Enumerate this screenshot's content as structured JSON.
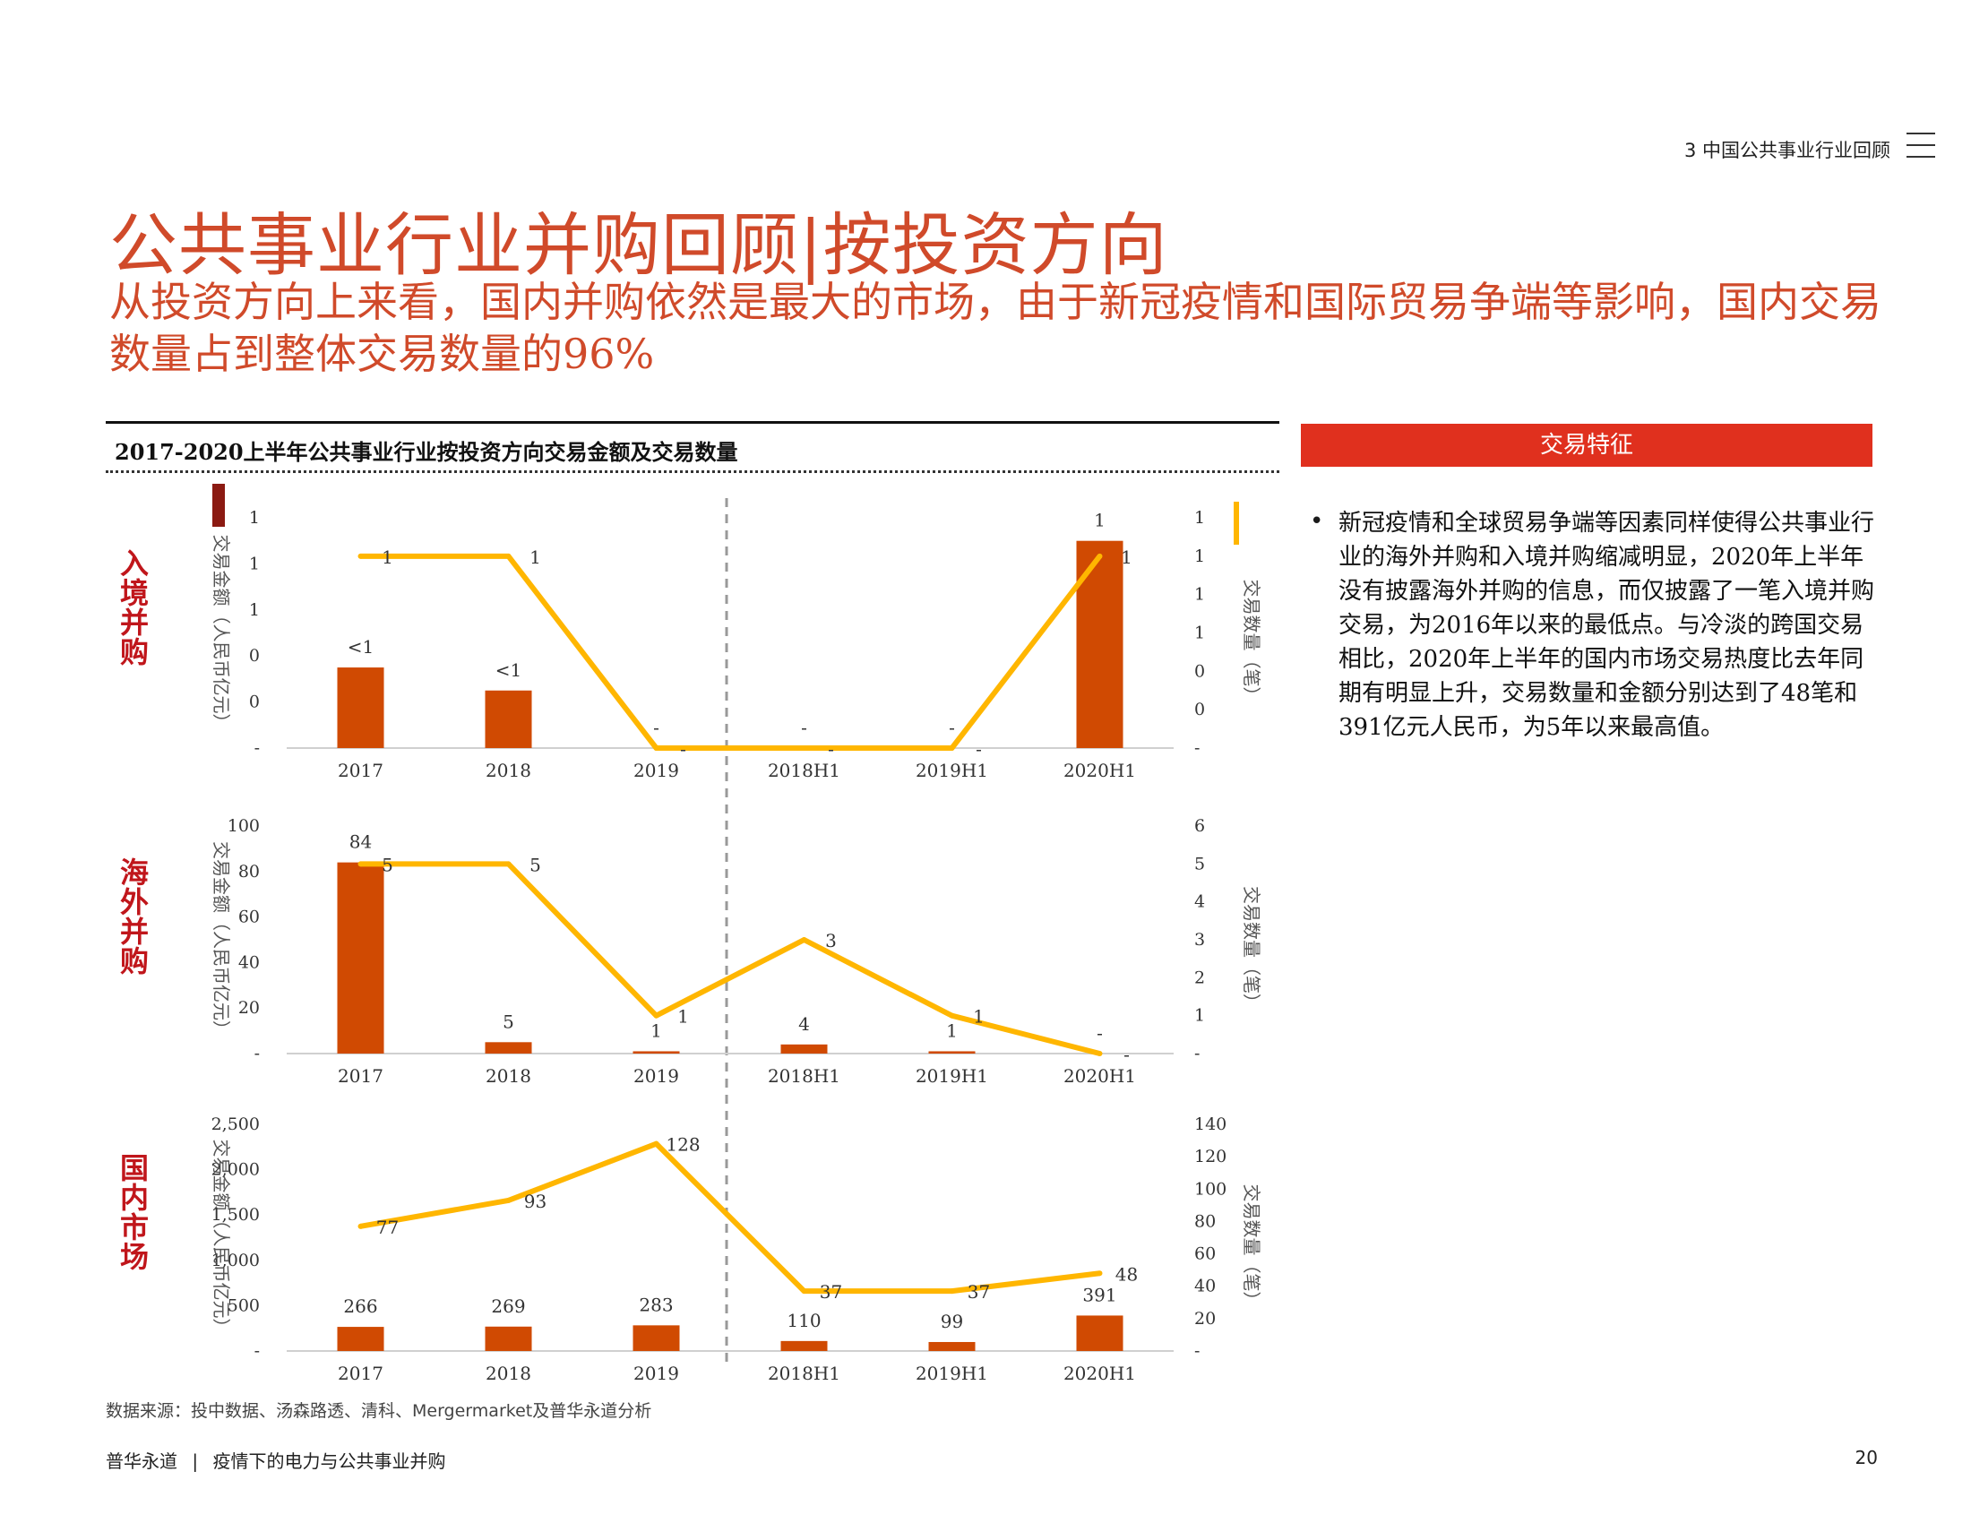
{
  "header": {
    "section": "3 中国公共事业行业回顾",
    "title": "公共事业行业并购回顾|按投资方向",
    "subtitle": "从投资方向上来看，国内并购依然是最大的市场，由于新冠疫情和国际贸易争端等影响，国内交易数量占到整体交易数量的96%"
  },
  "chart_title": "2017-2020上半年公共事业行业按投资方向交易金额及交易数量",
  "panel": {
    "title": "交易特征",
    "bullet": "新冠疫情和全球贸易争端等因素同样使得公共事业行业的海外并购和入境并购缩减明显，2020年上半年没有披露海外并购的信息，而仅披露了一笔入境并购交易，为2016年以来的最低点。与冷淡的跨国交易相比，2020年上半年的国内市场交易热度比去年同期有明显上升，交易数量和金额分别达到了48笔和391亿元人民币，为5年以来最高值。"
  },
  "source": "数据来源：投中数据、汤森路透、清科、Mergermarket及普华永道分析",
  "footer": {
    "brand": "普华永道",
    "separator": "|",
    "report": "疫情下的电力与公共事业并购",
    "page": "20"
  },
  "colors": {
    "bar": "#d04a02",
    "line": "#ffb600",
    "accent": "#e0301e",
    "label": "#c0161b",
    "legend_bar": "#8b1a12"
  },
  "chart_data": [
    {
      "type": "bar+line",
      "row_label": "入境并购",
      "categories": [
        "2017",
        "2018",
        "2019",
        "2018H1",
        "2019H1",
        "2020H1"
      ],
      "ylabel": "交易金额（人民币亿元）",
      "y2label": "交易数量（笔）",
      "y_ticks": [
        "-",
        "0",
        "0",
        "1",
        "1",
        "1"
      ],
      "y2_ticks": [
        "-",
        "0",
        "0",
        "1",
        "1",
        "1",
        "1"
      ],
      "bar_values": [
        0.35,
        0.25,
        0,
        0,
        0,
        0.9
      ],
      "bar_labels": [
        "<1",
        "<1",
        "-",
        "-",
        "-",
        "1"
      ],
      "line_values": [
        1,
        1,
        0,
        0,
        0,
        1
      ],
      "line_labels": [
        "1",
        "1",
        "-",
        "-",
        "-",
        "1"
      ],
      "ylim": [
        0,
        1
      ],
      "y2lim": [
        0,
        1.2
      ]
    },
    {
      "type": "bar+line",
      "row_label": "海外并购",
      "categories": [
        "2017",
        "2018",
        "2019",
        "2018H1",
        "2019H1",
        "2020H1"
      ],
      "ylabel": "交易金额（人民币亿元）",
      "y2label": "交易数量（笔）",
      "y_ticks": [
        "-",
        "20",
        "40",
        "60",
        "80",
        "100"
      ],
      "y2_ticks": [
        "-",
        "1",
        "2",
        "3",
        "4",
        "5",
        "6"
      ],
      "bar_values": [
        84,
        5,
        1,
        4,
        1,
        0
      ],
      "bar_labels": [
        "84",
        "5",
        "1",
        "4",
        "1",
        "-"
      ],
      "line_values": [
        5,
        5,
        1,
        3,
        1,
        0
      ],
      "line_labels": [
        "5",
        "5",
        "1",
        "3",
        "1",
        "-"
      ],
      "ylim": [
        0,
        100
      ],
      "y2lim": [
        0,
        6
      ]
    },
    {
      "type": "bar+line",
      "row_label": "国内市场",
      "categories": [
        "2017",
        "2018",
        "2019",
        "2018H1",
        "2019H1",
        "2020H1"
      ],
      "ylabel": "交易金额（人民币亿元）",
      "y2label": "交易数量（笔）",
      "y_ticks": [
        "-",
        "500",
        "1,000",
        "1,500",
        "2,000",
        "2,500"
      ],
      "y2_ticks": [
        "-",
        "20",
        "40",
        "60",
        "80",
        "100",
        "120",
        "140"
      ],
      "bar_values": [
        266,
        269,
        283,
        110,
        99,
        391
      ],
      "bar_labels": [
        "266",
        "269",
        "283",
        "110",
        "99",
        "391"
      ],
      "line_values": [
        77,
        93,
        128,
        37,
        37,
        48
      ],
      "line_labels": [
        "77",
        "93",
        "128",
        "37",
        "37",
        "48"
      ],
      "ylim": [
        0,
        2500
      ],
      "y2lim": [
        0,
        140
      ]
    }
  ]
}
